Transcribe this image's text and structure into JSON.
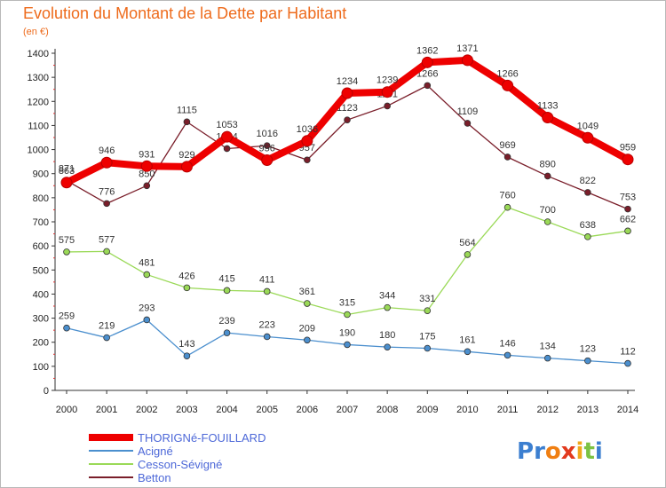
{
  "chart_data": {
    "type": "line",
    "title": "Evolution du Montant de la Dette par Habitant",
    "subtitle": "(en €)",
    "xlabel": "",
    "ylabel": "",
    "ylim": [
      0,
      1400
    ],
    "yticks": [
      0,
      100,
      200,
      300,
      400,
      500,
      600,
      700,
      800,
      900,
      1000,
      1100,
      1200,
      1300,
      1400
    ],
    "grid": false,
    "legend_position": "bottom-left",
    "x": [
      "2000",
      "2001",
      "2002",
      "2003",
      "2004",
      "2005",
      "2006",
      "2007",
      "2008",
      "2009",
      "2010",
      "2011",
      "2012",
      "2013",
      "2014"
    ],
    "series": [
      {
        "name": "THORIGNé-FOUILLARD",
        "color": "#ee0000",
        "values": [
          863,
          946,
          931,
          929,
          1053,
          956,
          1036,
          1234,
          1239,
          1362,
          1371,
          1266,
          1133,
          1049,
          959
        ]
      },
      {
        "name": "Acigné",
        "color": "#4b8fce",
        "values": [
          259,
          219,
          293,
          143,
          239,
          223,
          209,
          190,
          180,
          175,
          161,
          146,
          134,
          123,
          112
        ]
      },
      {
        "name": "Cesson-Sévigné",
        "color": "#9ad957",
        "values": [
          575,
          577,
          481,
          426,
          415,
          411,
          361,
          315,
          344,
          331,
          564,
          760,
          700,
          638,
          662
        ]
      },
      {
        "name": "Betton",
        "color": "#7a1e2a",
        "values": [
          871,
          776,
          850,
          1115,
          1004,
          1016,
          957,
          1123,
          1181,
          1266,
          1109,
          969,
          890,
          822,
          753
        ]
      }
    ]
  },
  "logo": {
    "text": "Proxiti",
    "letters": [
      "P",
      "r",
      "o",
      "x",
      "i",
      "t",
      "i"
    ],
    "colors": [
      "#3c7fd0",
      "#3c7fd0",
      "#f07f12",
      "#e23a1e",
      "#f0a81a",
      "#7cc243",
      "#3c7fd0"
    ]
  }
}
